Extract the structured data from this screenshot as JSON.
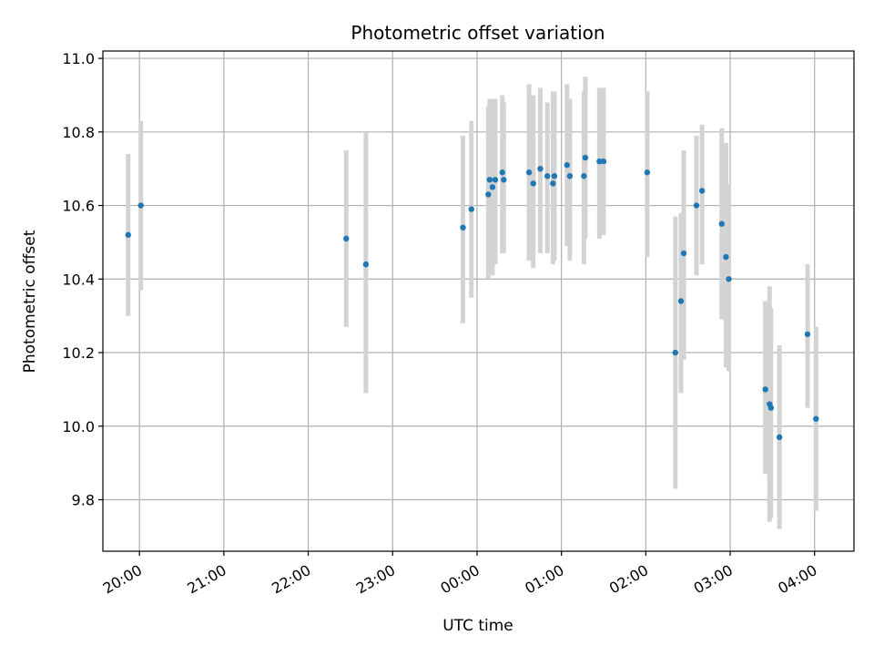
{
  "chart_data": {
    "type": "scatter",
    "title": "Photometric offset variation",
    "xlabel": "UTC time",
    "ylabel": "Photometric offset",
    "grid": true,
    "xlim": [
      "19:34",
      "04:28"
    ],
    "ylim": [
      9.66,
      11.02
    ],
    "x_ticks": [
      "20:00",
      "21:00",
      "22:00",
      "23:00",
      "00:00",
      "01:00",
      "02:00",
      "03:00",
      "04:00"
    ],
    "y_ticks": [
      "9.8",
      "10.0",
      "10.2",
      "10.4",
      "10.6",
      "10.8",
      "11.0"
    ],
    "point_color": "#1f77b4",
    "errorbar_color": "#d3d3d3",
    "points": [
      {
        "x": "19:52",
        "y": 10.52,
        "err_low": 10.3,
        "err_high": 10.74
      },
      {
        "x": "20:01",
        "y": 10.6,
        "err_low": 10.37,
        "err_high": 10.83
      },
      {
        "x": "22:27",
        "y": 10.51,
        "err_low": 10.27,
        "err_high": 10.75
      },
      {
        "x": "22:41",
        "y": 10.44,
        "err_low": 10.09,
        "err_high": 10.8
      },
      {
        "x": "23:50",
        "y": 10.54,
        "err_low": 10.28,
        "err_high": 10.79
      },
      {
        "x": "23:56",
        "y": 10.59,
        "err_low": 10.35,
        "err_high": 10.83
      },
      {
        "x": "00:08",
        "y": 10.63,
        "err_low": 10.4,
        "err_high": 10.87
      },
      {
        "x": "00:09",
        "y": 10.67,
        "err_low": 10.43,
        "err_high": 10.89
      },
      {
        "x": "00:11",
        "y": 10.65,
        "err_low": 10.41,
        "err_high": 10.89
      },
      {
        "x": "00:13",
        "y": 10.67,
        "err_low": 10.44,
        "err_high": 10.89
      },
      {
        "x": "00:18",
        "y": 10.69,
        "err_low": 10.47,
        "err_high": 10.9
      },
      {
        "x": "00:19",
        "y": 10.67,
        "err_low": 10.47,
        "err_high": 10.88
      },
      {
        "x": "00:37",
        "y": 10.69,
        "err_low": 10.45,
        "err_high": 10.93
      },
      {
        "x": "00:40",
        "y": 10.66,
        "err_low": 10.43,
        "err_high": 10.9
      },
      {
        "x": "00:45",
        "y": 10.7,
        "err_low": 10.47,
        "err_high": 10.92
      },
      {
        "x": "00:50",
        "y": 10.68,
        "err_low": 10.47,
        "err_high": 10.88
      },
      {
        "x": "00:54",
        "y": 10.66,
        "err_low": 10.44,
        "err_high": 10.91
      },
      {
        "x": "00:55",
        "y": 10.68,
        "err_low": 10.45,
        "err_high": 10.91
      },
      {
        "x": "01:04",
        "y": 10.71,
        "err_low": 10.49,
        "err_high": 10.93
      },
      {
        "x": "01:06",
        "y": 10.68,
        "err_low": 10.45,
        "err_high": 10.89
      },
      {
        "x": "01:16",
        "y": 10.68,
        "err_low": 10.44,
        "err_high": 10.91
      },
      {
        "x": "01:17",
        "y": 10.73,
        "err_low": 10.51,
        "err_high": 10.95
      },
      {
        "x": "01:27",
        "y": 10.72,
        "err_low": 10.51,
        "err_high": 10.92
      },
      {
        "x": "01:30",
        "y": 10.72,
        "err_low": 10.52,
        "err_high": 10.92
      },
      {
        "x": "02:01",
        "y": 10.69,
        "err_low": 10.46,
        "err_high": 10.91
      },
      {
        "x": "02:21",
        "y": 10.2,
        "err_low": 9.83,
        "err_high": 10.57
      },
      {
        "x": "02:25",
        "y": 10.34,
        "err_low": 10.09,
        "err_high": 10.58
      },
      {
        "x": "02:27",
        "y": 10.47,
        "err_low": 10.18,
        "err_high": 10.75
      },
      {
        "x": "02:36",
        "y": 10.6,
        "err_low": 10.41,
        "err_high": 10.79
      },
      {
        "x": "02:40",
        "y": 10.64,
        "err_low": 10.44,
        "err_high": 10.82
      },
      {
        "x": "02:54",
        "y": 10.55,
        "err_low": 10.29,
        "err_high": 10.81
      },
      {
        "x": "02:57",
        "y": 10.46,
        "err_low": 10.16,
        "err_high": 10.77
      },
      {
        "x": "02:59",
        "y": 10.4,
        "err_low": 10.15,
        "err_high": 10.66
      },
      {
        "x": "03:25",
        "y": 10.1,
        "err_low": 9.87,
        "err_high": 10.34
      },
      {
        "x": "03:28",
        "y": 10.06,
        "err_low": 9.74,
        "err_high": 10.38
      },
      {
        "x": "03:29",
        "y": 10.05,
        "err_low": 9.75,
        "err_high": 10.32
      },
      {
        "x": "03:35",
        "y": 9.97,
        "err_low": 9.72,
        "err_high": 10.22
      },
      {
        "x": "03:55",
        "y": 10.25,
        "err_low": 10.05,
        "err_high": 10.44
      },
      {
        "x": "04:01",
        "y": 10.02,
        "err_low": 9.77,
        "err_high": 10.27
      }
    ]
  }
}
